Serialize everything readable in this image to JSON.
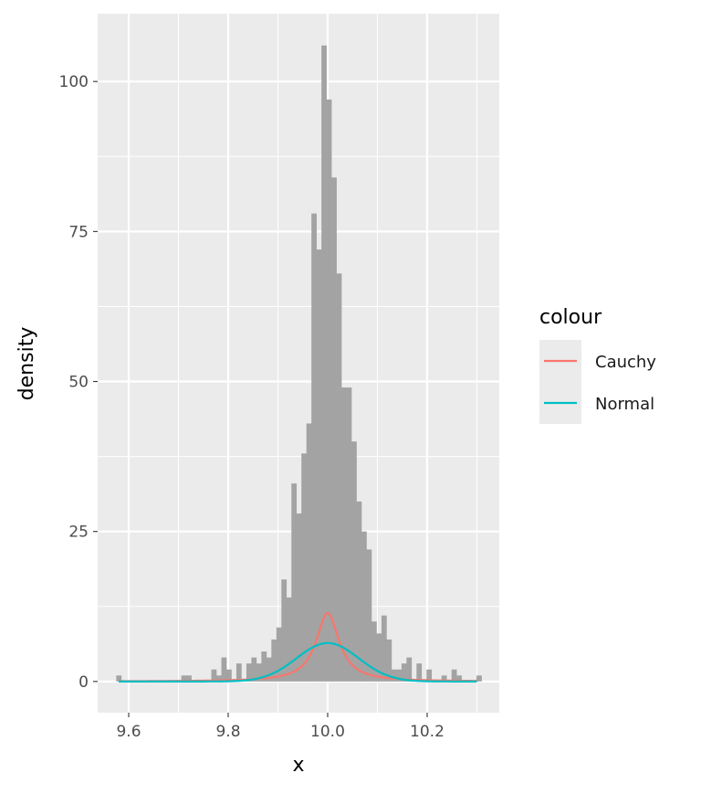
{
  "chart_data": {
    "type": "histogram",
    "xlabel": "x",
    "ylabel": "density",
    "xlim": [
      9.5376,
      10.345
    ],
    "ylim": [
      -5.2,
      111.3
    ],
    "x_ticks": [
      9.6,
      9.8,
      10.0,
      10.2
    ],
    "x_tick_labels": [
      "9.6",
      "9.8",
      "10.0",
      "10.2"
    ],
    "y_ticks": [
      0,
      25,
      50,
      75,
      100
    ],
    "y_tick_labels": [
      "0",
      "25",
      "50",
      "75",
      "100"
    ],
    "grid": true,
    "histogram": {
      "bin_start": 9.575,
      "binwidth": 0.01006,
      "density": [
        1,
        0,
        0,
        0,
        0,
        0,
        0,
        0,
        0,
        0,
        0,
        0,
        0,
        1,
        1,
        0,
        0,
        0,
        0,
        2,
        1,
        4,
        2,
        0,
        3,
        0,
        3,
        4,
        3,
        5,
        4,
        7,
        9,
        17,
        14,
        33,
        28,
        38,
        43,
        78,
        72,
        106,
        97,
        84,
        68,
        49,
        49,
        40,
        30,
        25,
        22,
        10,
        8,
        11,
        7,
        2,
        2,
        3,
        4,
        0,
        3,
        0,
        2,
        0,
        0,
        1,
        0,
        2,
        1,
        0,
        0,
        0,
        1
      ],
      "color": "#A3A3A3"
    },
    "series": [
      {
        "name": "Cauchy",
        "distribution": "cauchy",
        "location": 10.0,
        "scale": 0.0279,
        "x_range": [
          9.58,
          10.3
        ],
        "color": "#F8766D"
      },
      {
        "name": "Normal",
        "distribution": "normal",
        "mean": 10.0,
        "sd": 0.0623,
        "x_range": [
          9.58,
          10.3
        ],
        "color": "#00BFC4"
      }
    ],
    "legend": {
      "title": "colour",
      "position": "right",
      "entries": [
        "Cauchy",
        "Normal"
      ]
    }
  }
}
